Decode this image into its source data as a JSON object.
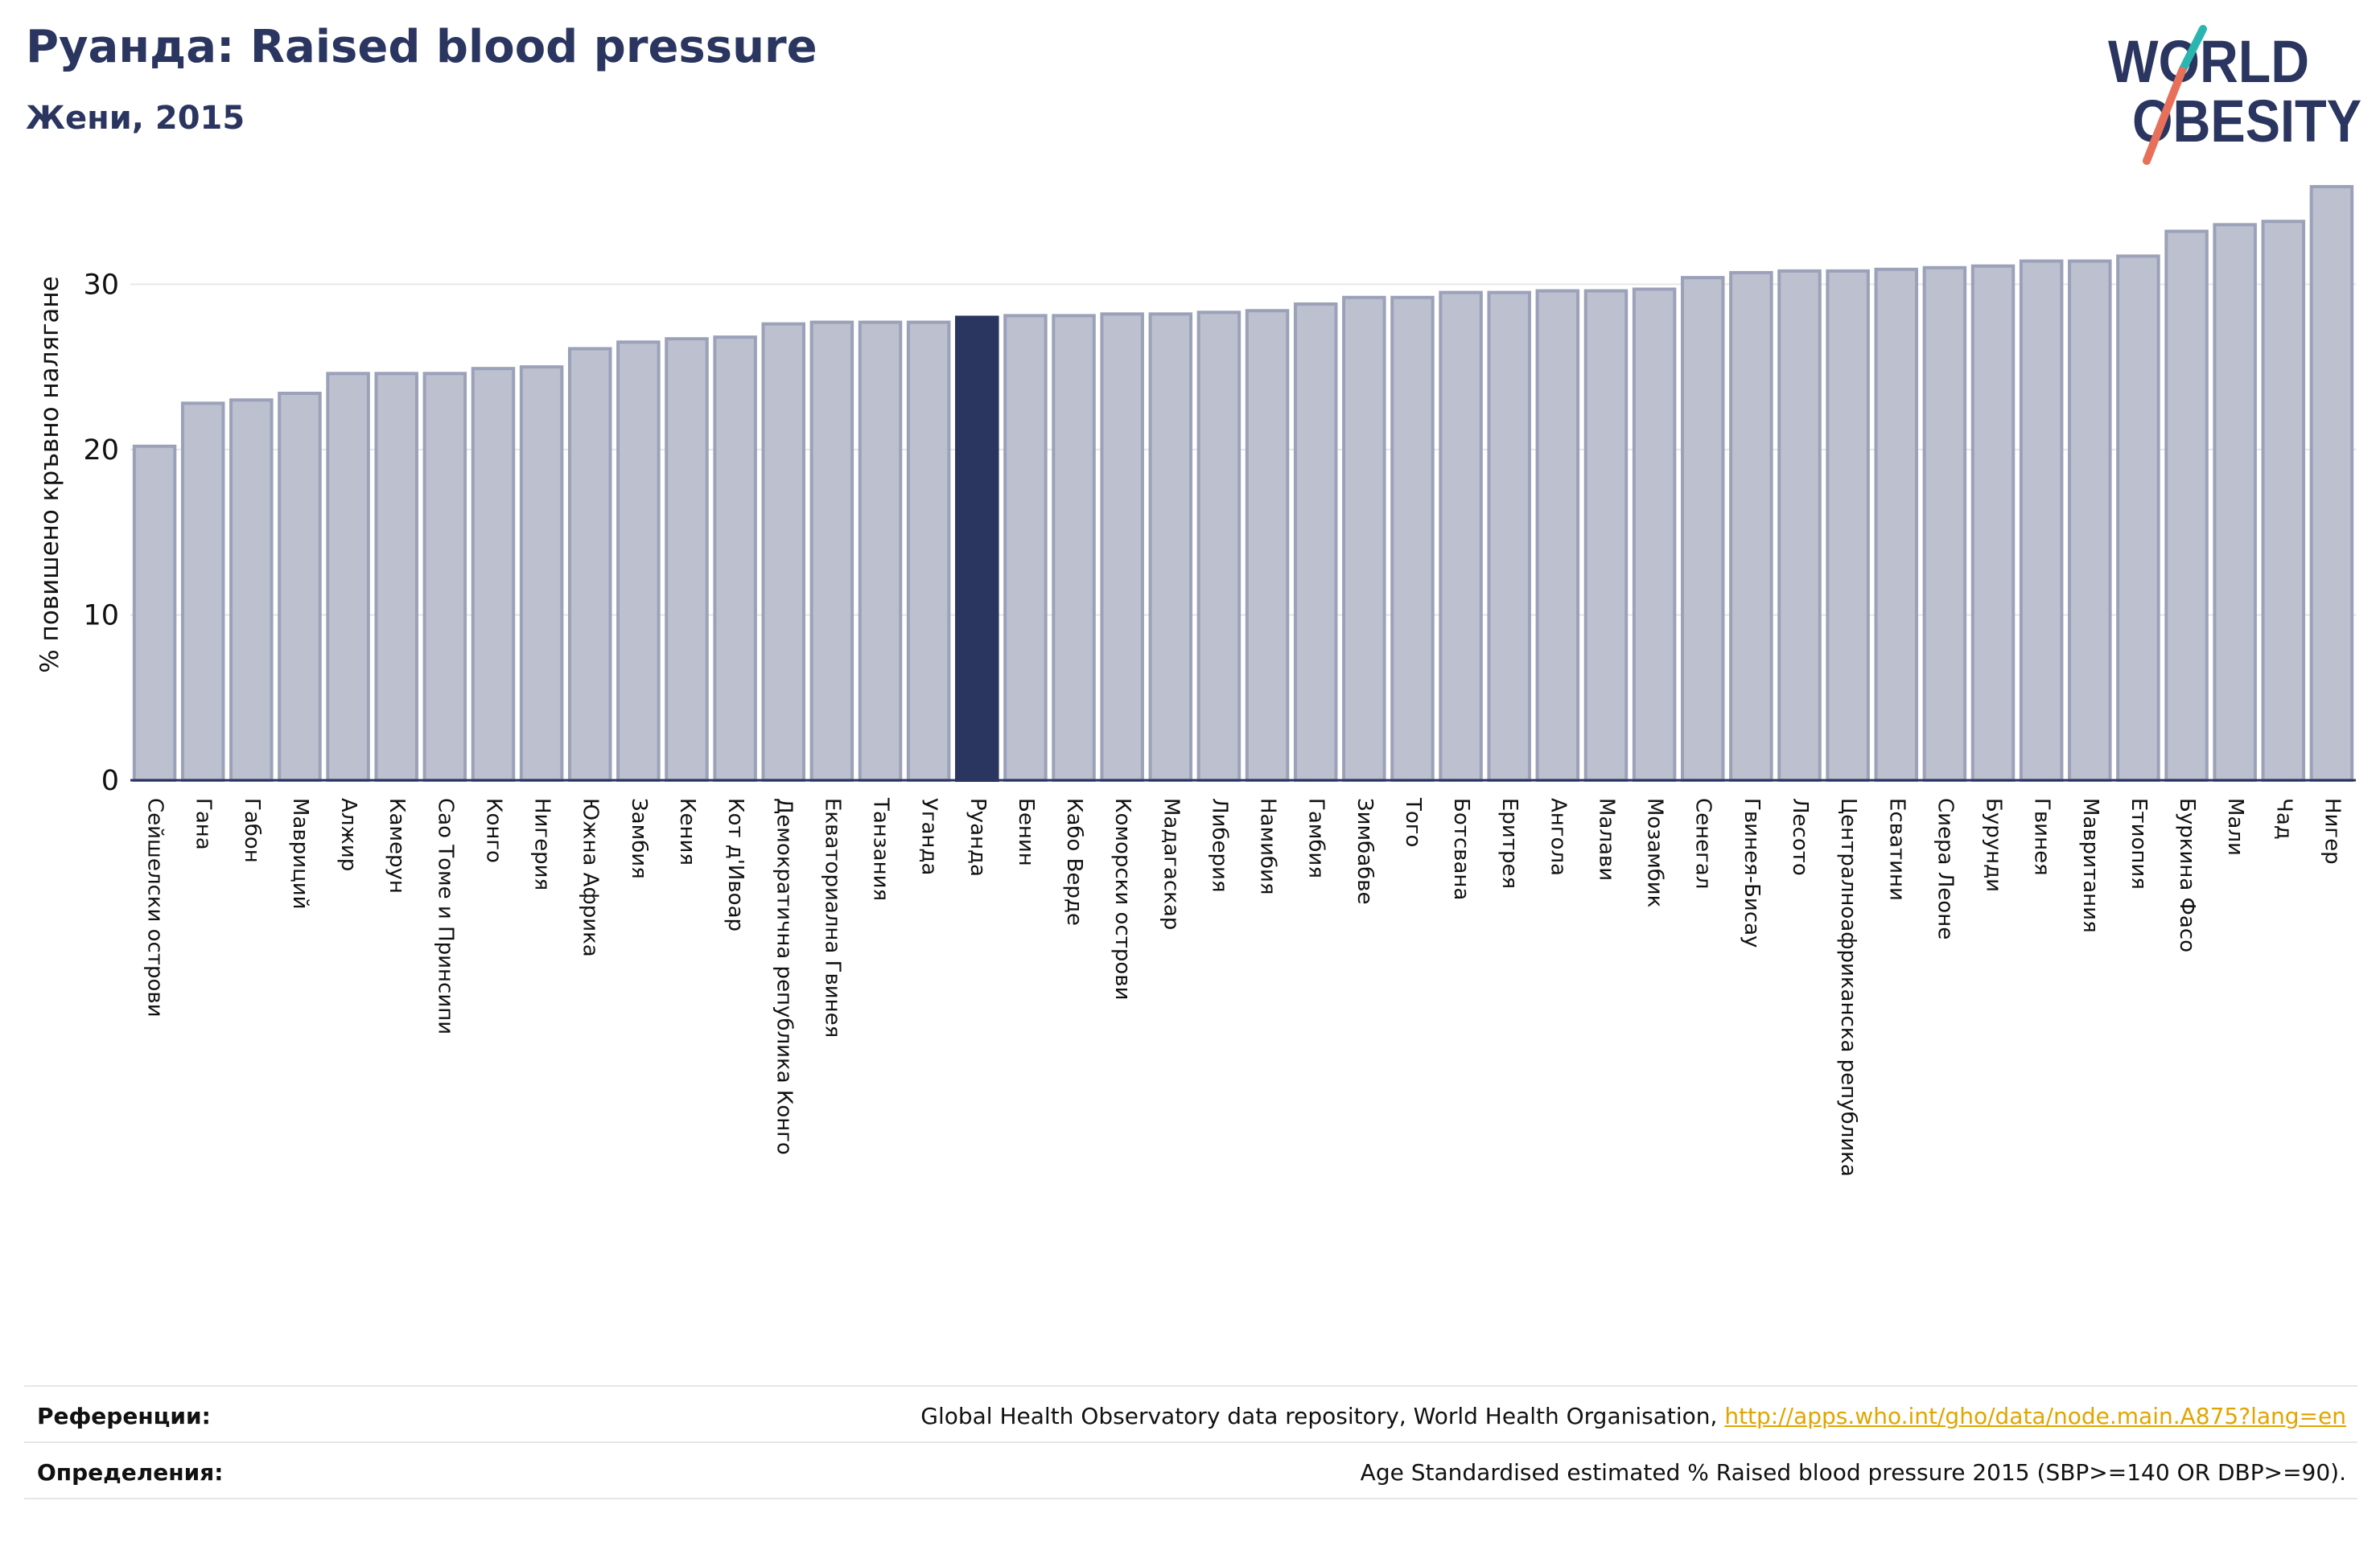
{
  "header": {
    "title": "Руанда: Raised blood pressure",
    "subtitle": "Жени, 2015"
  },
  "logo": {
    "line1": "WORLD",
    "line2": "OBESITY",
    "colors": {
      "text": "#2a3560",
      "slash_top": "#2bb5b1",
      "slash_bottom": "#e8705a"
    }
  },
  "chart_data": {
    "type": "bar",
    "ylabel": "% повишено кръвно налягане",
    "xlabel": "",
    "ylim": [
      0,
      36
    ],
    "yticks": [
      0,
      10,
      20,
      30
    ],
    "grid": true,
    "highlight": "Руанда",
    "colors": {
      "bar": "#bcc0cf",
      "bar_edge": "#9ba1b9",
      "highlight": "#2a3560",
      "grid": "#e6e6e6",
      "axis": "#2a3560"
    },
    "categories": [
      "Сейшелски острови",
      "Гана",
      "Габон",
      "Мавриций",
      "Алжир",
      "Камерун",
      "Сао Томе и Принсипи",
      "Конго",
      "Нигерия",
      "Южна Африка",
      "Замбия",
      "Кения",
      "Кот д'Ивоар",
      "Демократична република Конго",
      "Екваториална Гвинея",
      "Танзания",
      "Уганда",
      "Руанда",
      "Бенин",
      "Кабо Верде",
      "Коморски острови",
      "Мадагаскар",
      "Либерия",
      "Намибия",
      "Гамбия",
      "Зимбабве",
      "Того",
      "Ботсвана",
      "Еритрея",
      "Ангола",
      "Малави",
      "Мозамбик",
      "Сенегал",
      "Гвинея-Бисау",
      "Лесото",
      "Централноафриканска република",
      "Есватини",
      "Сиера Леоне",
      "Бурунди",
      "Гвинея",
      "Мавритания",
      "Етиопия",
      "Буркина Фасо",
      "Мали",
      "Чад",
      "Нигер"
    ],
    "values": [
      20.2,
      22.8,
      23.0,
      23.4,
      24.6,
      24.6,
      24.6,
      24.9,
      25.0,
      26.1,
      26.5,
      26.7,
      26.8,
      27.6,
      27.7,
      27.7,
      27.7,
      28.0,
      28.1,
      28.1,
      28.2,
      28.2,
      28.3,
      28.4,
      28.8,
      29.2,
      29.2,
      29.5,
      29.5,
      29.6,
      29.6,
      29.7,
      30.4,
      30.7,
      30.8,
      30.8,
      30.9,
      31.0,
      31.1,
      31.4,
      31.4,
      31.7,
      33.2,
      33.6,
      33.8,
      35.9
    ]
  },
  "footer": {
    "references_label": "Референции:",
    "references_text": "Global Health Observatory data repository, World Health Organisation, ",
    "references_link": "http://apps.who.int/gho/data/node.main.A875?lang=en",
    "definitions_label": "Определения:",
    "definitions_text": "Age Standardised estimated % Raised blood pressure 2015 (SBP>=140 OR DBP>=90)."
  }
}
